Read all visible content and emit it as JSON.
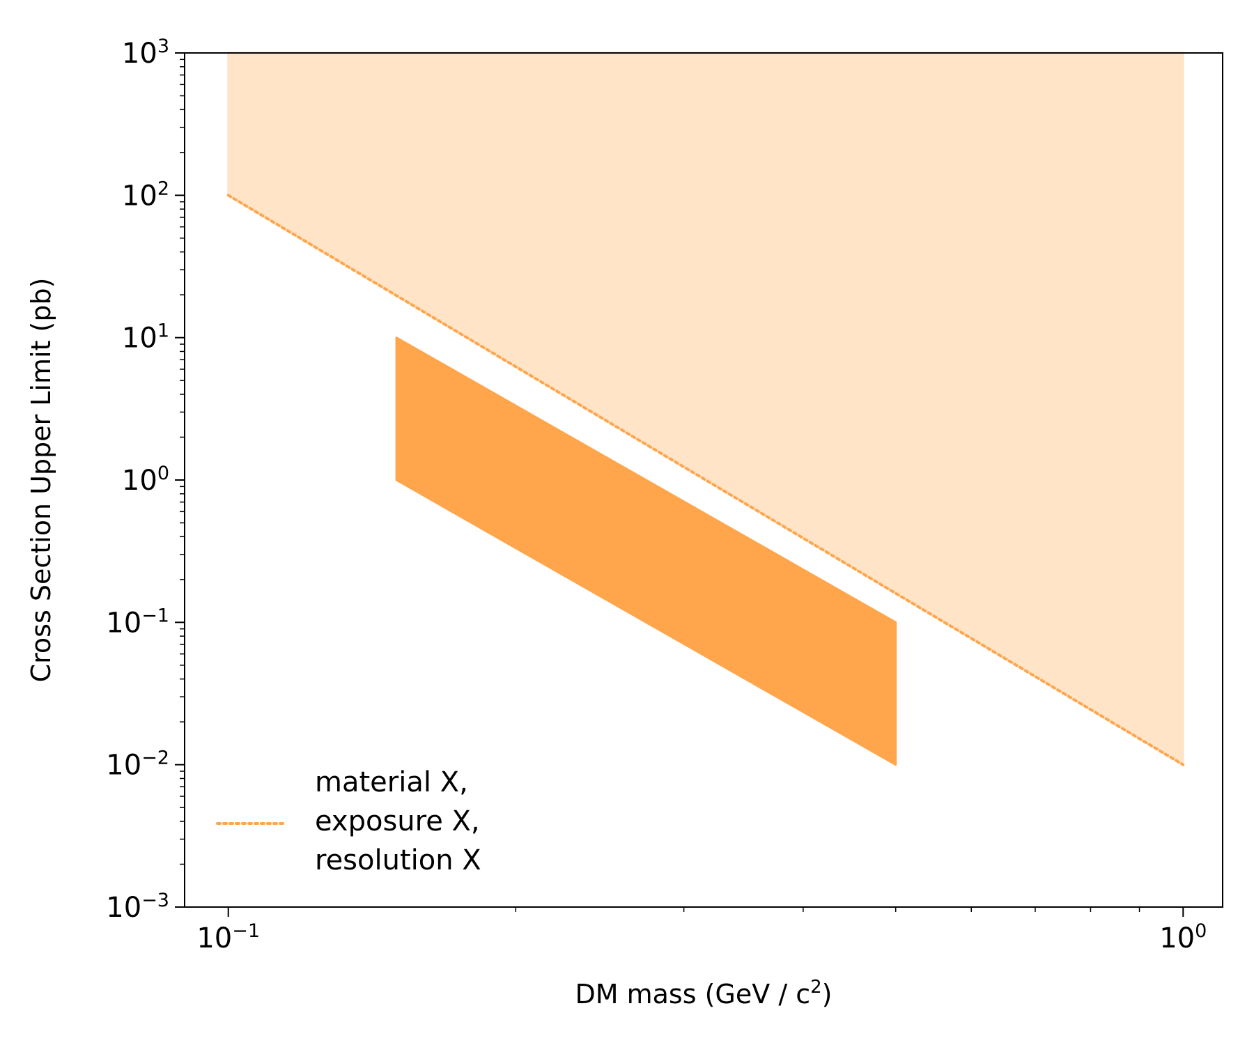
{
  "chart_data": {
    "type": "area",
    "xscale": "log",
    "yscale": "log",
    "xlim": [
      0.09,
      1.1
    ],
    "ylim": [
      0.001,
      1000
    ],
    "xlabel": "DM mass (GeV / c",
    "xlabel_sup": "2",
    "xlabel_end": ")",
    "ylabel": "Cross Section Upper Limit (pb)",
    "x_ticks": [
      {
        "value": 0.1,
        "base": "10",
        "exp": "−1"
      },
      {
        "value": 1.0,
        "base": "10",
        "exp": "0"
      }
    ],
    "y_ticks": [
      {
        "value": 0.001,
        "base": "10",
        "exp": "−3"
      },
      {
        "value": 0.01,
        "base": "10",
        "exp": "−2"
      },
      {
        "value": 0.1,
        "base": "10",
        "exp": "−1"
      },
      {
        "value": 1,
        "base": "10",
        "exp": "0"
      },
      {
        "value": 10,
        "base": "10",
        "exp": "1"
      },
      {
        "value": 100,
        "base": "10",
        "exp": "2"
      },
      {
        "value": 1000,
        "base": "10",
        "exp": "3"
      }
    ],
    "grid": false,
    "legend_position": "lower-left",
    "series": [
      {
        "name": "material X,\nexposure X,\nresolution X",
        "legend_lines": [
          "material X,",
          "exposure X,",
          "resolution X"
        ],
        "style": "dotted",
        "color": "#ffa64d",
        "fill_color": "#ffe4c8",
        "x": [
          0.1,
          1.0
        ],
        "y": [
          100,
          0.01
        ],
        "fill_to": 1000
      }
    ],
    "bands": [
      {
        "color": "#ffa64d",
        "x": [
          0.15,
          0.5
        ],
        "y_upper": [
          10,
          0.1
        ],
        "y_lower": [
          1,
          0.01
        ]
      }
    ]
  }
}
